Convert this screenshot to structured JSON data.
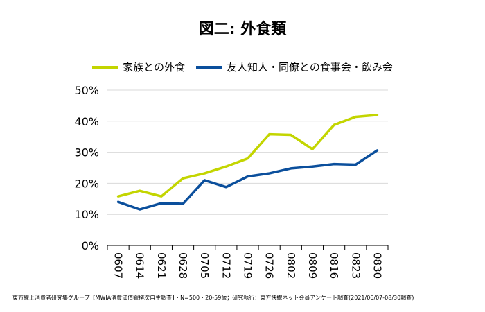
{
  "chart_data": {
    "type": "line",
    "title": "図二: 外食類",
    "categories": [
      "0607",
      "0614",
      "0621",
      "0628",
      "0705",
      "0712",
      "0719",
      "0726",
      "0802",
      "0809",
      "0816",
      "0823",
      "0830"
    ],
    "series": [
      {
        "name": "家族との外食",
        "color": "#c3d500",
        "values": [
          15.8,
          17.6,
          15.8,
          21.6,
          23.2,
          25.4,
          28.0,
          35.8,
          35.6,
          31.0,
          38.8,
          41.4,
          42.0
        ]
      },
      {
        "name": "友人知人・同僚との食事会・飲み会",
        "color": "#0b4f9c",
        "values": [
          14.0,
          11.6,
          13.6,
          13.4,
          21.0,
          18.8,
          22.2,
          23.2,
          24.8,
          25.4,
          26.2,
          26.0,
          30.6
        ]
      }
    ],
    "ylim": [
      0,
      50
    ],
    "yticks": [
      "0%",
      "10%",
      "20%",
      "30%",
      "40%",
      "50%"
    ],
    "ytick_values": [
      0,
      10,
      20,
      30,
      40,
      50
    ],
    "grid": true,
    "legend": "top"
  },
  "footnote": "東方線上消費者研究集グループ【MWIA消費価值觀撰次自主調查】・N=500・20-59歳；研究執行：東方快線ネット会員アンケート調査(2021/06/07-08/30調查)"
}
